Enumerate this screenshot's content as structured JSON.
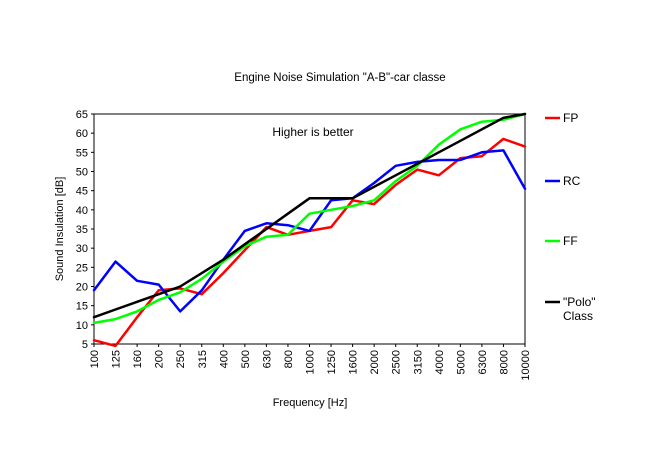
{
  "chart_data": {
    "type": "line",
    "title": "Engine Noise Simulation \"A-B\"-car classe",
    "xlabel": "Frequency [Hz]",
    "ylabel": "Sound Insulation [dB]",
    "annotation": "Higher is better",
    "categories": [
      "100",
      "125",
      "160",
      "200",
      "250",
      "315",
      "400",
      "500",
      "630",
      "800",
      "1000",
      "1250",
      "1600",
      "2000",
      "2500",
      "3150",
      "4000",
      "5000",
      "6300",
      "8000",
      "10000"
    ],
    "ylim": [
      5,
      65
    ],
    "yticks": [
      5,
      10,
      15,
      20,
      25,
      30,
      35,
      40,
      45,
      50,
      55,
      60,
      65
    ],
    "grid": false,
    "legend_position": "right",
    "series": [
      {
        "name": "FP",
        "legend_lines": [
          "FP"
        ],
        "color": "#ff0000",
        "values": [
          6,
          4.5,
          12,
          19,
          19.5,
          18,
          23.5,
          29.5,
          35.5,
          33.5,
          34.5,
          35.5,
          42.5,
          41.5,
          46.5,
          50.5,
          49,
          53.5,
          54,
          58.5,
          56.5
        ]
      },
      {
        "name": "RC",
        "legend_lines": [
          "RC"
        ],
        "color": "#0000ff",
        "values": [
          19,
          26.5,
          21.5,
          20.5,
          13.5,
          19,
          27,
          34.5,
          36.5,
          36,
          34.5,
          42.5,
          43,
          47,
          51.5,
          52.5,
          53,
          53,
          55,
          55.5,
          45.5
        ]
      },
      {
        "name": "FF",
        "legend_lines": [
          "FF"
        ],
        "color": "#00ff00",
        "values": [
          10.5,
          11.5,
          13.5,
          16.5,
          18.5,
          22,
          26.5,
          30.5,
          33,
          33.5,
          39,
          40,
          41,
          42.5,
          47.5,
          51.5,
          57,
          61,
          63,
          63.5,
          65
        ]
      },
      {
        "name": "\"Polo\" Class",
        "legend_lines": [
          "\"Polo\"",
          "Class"
        ],
        "color": "#000000",
        "values": [
          12,
          14,
          16,
          18,
          20,
          23.5,
          27,
          31,
          35,
          39,
          43,
          43,
          43,
          46,
          49,
          52,
          55,
          58,
          61,
          64,
          65
        ]
      }
    ]
  }
}
